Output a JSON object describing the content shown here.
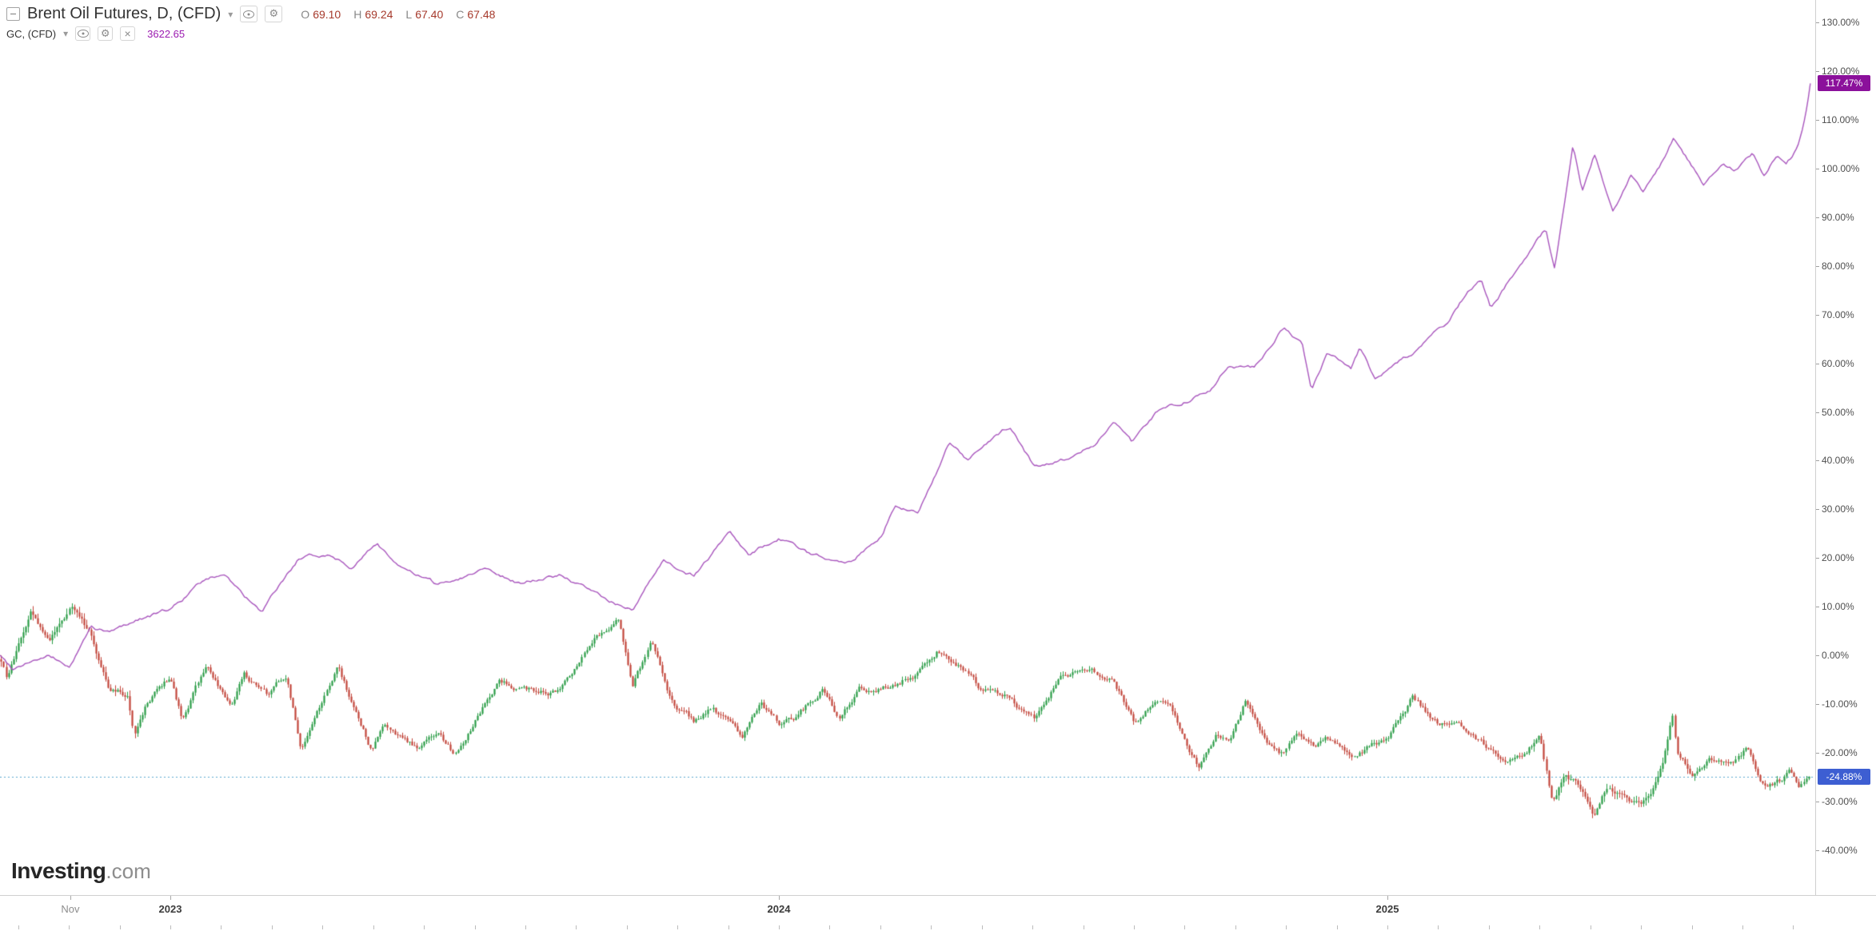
{
  "legend": {
    "main": {
      "title": "Brent Oil Futures, D, (CFD)",
      "ohlc": [
        {
          "label": "O",
          "value": "69.10"
        },
        {
          "label": "H",
          "value": "69.24"
        },
        {
          "label": "L",
          "value": "67.40"
        },
        {
          "label": "C",
          "value": "67.48"
        }
      ]
    },
    "overlay": {
      "title": "GC, (CFD)",
      "value": "3622.65"
    }
  },
  "watermark": {
    "brand": "Investing",
    "suffix": ".com"
  },
  "price_labels": {
    "gold": {
      "text": "117.47%",
      "value": 117.47
    },
    "brent": {
      "text": "-24.88%",
      "value": -24.88
    }
  },
  "colors": {
    "candle_up": "#2a9c46",
    "candle_down": "#c2453a",
    "gold_line": "#a855bd",
    "gold_badge": "#8b109b",
    "gold_value": "#9b1ab0",
    "brent_badge": "#3d5ed2",
    "ohlc_value": "#a63a2c",
    "dashed_line": "#5aa7cf",
    "axis_text": "#4f4f4f"
  },
  "axes": {
    "y_ticks": [
      {
        "label": "130.00%",
        "value": 130
      },
      {
        "label": "120.00%",
        "value": 120
      },
      {
        "label": "110.00%",
        "value": 110
      },
      {
        "label": "100.00%",
        "value": 100
      },
      {
        "label": "90.00%",
        "value": 90
      },
      {
        "label": "80.00%",
        "value": 80
      },
      {
        "label": "70.00%",
        "value": 70
      },
      {
        "label": "60.00%",
        "value": 60
      },
      {
        "label": "50.00%",
        "value": 50
      },
      {
        "label": "40.00%",
        "value": 40
      },
      {
        "label": "30.00%",
        "value": 30
      },
      {
        "label": "20.00%",
        "value": 20
      },
      {
        "label": "10.00%",
        "value": 10
      },
      {
        "label": "0.00%",
        "value": 0
      },
      {
        "label": "-10.00%",
        "value": -10
      },
      {
        "label": "-20.00%",
        "value": -20
      },
      {
        "label": "-30.00%",
        "value": -30
      },
      {
        "label": "-40.00%",
        "value": -40
      }
    ],
    "x_ticks": [
      {
        "label": "Nov",
        "year": 2022.8356,
        "strong": false
      },
      {
        "label": "2023",
        "year": 2023.0,
        "strong": true
      },
      {
        "label": "2024",
        "year": 2024.0,
        "strong": true
      },
      {
        "label": "2025",
        "year": 2025.0,
        "strong": true
      }
    ]
  },
  "chart_data": [
    {
      "type": "candlestick",
      "name": "Brent Oil Futures (CFD), Daily, percent change vs chart start",
      "x_unit": "decimal_year",
      "y_unit": "percent_change",
      "ylim": [
        -40,
        130
      ],
      "xlim": [
        2022.718,
        2025.703
      ],
      "grid": false,
      "last_values": {
        "open": 69.1,
        "high": 69.24,
        "low": 67.4,
        "close": 67.48,
        "close_pct": -24.88
      },
      "series_keypoints": [
        [
          2022.718,
          0.9
        ],
        [
          2022.73,
          -4.2
        ],
        [
          2022.76,
          4.6
        ],
        [
          2022.77,
          9.0
        ],
        [
          2022.8,
          2.4
        ],
        [
          2022.838,
          9.6
        ],
        [
          2022.87,
          4.1
        ],
        [
          2022.9,
          -7.4
        ],
        [
          2022.93,
          -8.1
        ],
        [
          2022.94,
          -15.4
        ],
        [
          2022.96,
          -9.6
        ],
        [
          2023.0,
          -4.4
        ],
        [
          2023.02,
          -13.4
        ],
        [
          2023.06,
          -1.9
        ],
        [
          2023.1,
          -11.0
        ],
        [
          2023.12,
          -3.7
        ],
        [
          2023.16,
          -8.3
        ],
        [
          2023.19,
          -4.1
        ],
        [
          2023.215,
          -19.7
        ],
        [
          2023.24,
          -11.3
        ],
        [
          2023.275,
          -2.9
        ],
        [
          2023.33,
          -19.6
        ],
        [
          2023.35,
          -14.9
        ],
        [
          2023.41,
          -19.1
        ],
        [
          2023.44,
          -15.6
        ],
        [
          2023.465,
          -19.6
        ],
        [
          2023.49,
          -14.9
        ],
        [
          2023.54,
          -4.8
        ],
        [
          2023.58,
          -6.5
        ],
        [
          2023.64,
          -7.5
        ],
        [
          2023.7,
          5.4
        ],
        [
          2023.735,
          7.4
        ],
        [
          2023.76,
          -5.7
        ],
        [
          2023.79,
          2.5
        ],
        [
          2023.83,
          -11.4
        ],
        [
          2023.86,
          -13.7
        ],
        [
          2023.89,
          -10.2
        ],
        [
          2023.94,
          -17.4
        ],
        [
          2023.97,
          -9.9
        ],
        [
          2024.0,
          -14.3
        ],
        [
          2024.03,
          -12.9
        ],
        [
          2024.07,
          -7.0
        ],
        [
          2024.1,
          -13.2
        ],
        [
          2024.13,
          -7.1
        ],
        [
          2024.16,
          -7.0
        ],
        [
          2024.2,
          -5.0
        ],
        [
          2024.23,
          -3.2
        ],
        [
          2024.26,
          1.4
        ],
        [
          2024.3,
          -2.9
        ],
        [
          2024.33,
          -7.2
        ],
        [
          2024.37,
          -7.9
        ],
        [
          2024.42,
          -13.8
        ],
        [
          2024.46,
          -5.2
        ],
        [
          2024.51,
          -2.8
        ],
        [
          2024.55,
          -5.4
        ],
        [
          2024.585,
          -14.4
        ],
        [
          2024.62,
          -8.5
        ],
        [
          2024.65,
          -12.6
        ],
        [
          2024.69,
          -23.0
        ],
        [
          2024.72,
          -16.4
        ],
        [
          2024.74,
          -18.1
        ],
        [
          2024.765,
          -10.0
        ],
        [
          2024.8,
          -18.7
        ],
        [
          2024.83,
          -20.8
        ],
        [
          2024.85,
          -15.9
        ],
        [
          2024.88,
          -18.5
        ],
        [
          2024.9,
          -16.4
        ],
        [
          2024.94,
          -20.9
        ],
        [
          2024.97,
          -18.8
        ],
        [
          2025.0,
          -16.9
        ],
        [
          2025.04,
          -8.8
        ],
        [
          2025.08,
          -13.7
        ],
        [
          2025.12,
          -15.4
        ],
        [
          2025.16,
          -19.3
        ],
        [
          2025.19,
          -22.9
        ],
        [
          2025.22,
          -20.9
        ],
        [
          2025.25,
          -16.6
        ],
        [
          2025.27,
          -30.2
        ],
        [
          2025.29,
          -24.5
        ],
        [
          2025.315,
          -27.0
        ],
        [
          2025.34,
          -33.0
        ],
        [
          2025.36,
          -27.6
        ],
        [
          2025.4,
          -30.1
        ],
        [
          2025.42,
          -29.8
        ],
        [
          2025.44,
          -26.0
        ],
        [
          2025.452,
          -22.4
        ],
        [
          2025.462,
          -17.3
        ],
        [
          2025.468,
          -12.3
        ],
        [
          2025.475,
          -20.5
        ],
        [
          2025.5,
          -24.7
        ],
        [
          2025.53,
          -21.7
        ],
        [
          2025.56,
          -23.2
        ],
        [
          2025.59,
          -19.4
        ],
        [
          2025.62,
          -27.0
        ],
        [
          2025.645,
          -25.7
        ],
        [
          2025.66,
          -24.3
        ],
        [
          2025.678,
          -27.1
        ],
        [
          2025.687,
          -25.4
        ],
        [
          2025.692,
          -24.88
        ]
      ]
    },
    {
      "type": "line",
      "name": "GC Gold Futures (CFD), percent change vs chart start",
      "x_unit": "decimal_year",
      "y_unit": "percent_change",
      "ylim": [
        -40,
        130
      ],
      "xlim": [
        2022.718,
        2025.703
      ],
      "grid": false,
      "last_values": {
        "price": 3622.65,
        "pct": 117.47
      },
      "series_keypoints": [
        [
          2022.718,
          0.3
        ],
        [
          2022.74,
          -2.6
        ],
        [
          2022.77,
          -0.8
        ],
        [
          2022.8,
          -0.2
        ],
        [
          2022.835,
          -2.4
        ],
        [
          2022.87,
          5.8
        ],
        [
          2022.9,
          4.6
        ],
        [
          2022.95,
          7.6
        ],
        [
          2023.0,
          9.5
        ],
        [
          2023.05,
          14.8
        ],
        [
          2023.09,
          16.9
        ],
        [
          2023.12,
          12.5
        ],
        [
          2023.15,
          8.6
        ],
        [
          2023.21,
          19.6
        ],
        [
          2023.26,
          20.8
        ],
        [
          2023.3,
          18.4
        ],
        [
          2023.34,
          23.1
        ],
        [
          2023.38,
          17.8
        ],
        [
          2023.44,
          14.3
        ],
        [
          2023.52,
          18.2
        ],
        [
          2023.58,
          14.8
        ],
        [
          2023.64,
          16.6
        ],
        [
          2023.7,
          12.4
        ],
        [
          2023.76,
          9.3
        ],
        [
          2023.81,
          19.0
        ],
        [
          2023.86,
          16.5
        ],
        [
          2023.92,
          25.3
        ],
        [
          2023.95,
          20.1
        ],
        [
          2024.0,
          24.2
        ],
        [
          2024.05,
          20.6
        ],
        [
          2024.12,
          19.7
        ],
        [
          2024.17,
          24.9
        ],
        [
          2024.19,
          30.8
        ],
        [
          2024.23,
          29.9
        ],
        [
          2024.28,
          43.8
        ],
        [
          2024.31,
          39.8
        ],
        [
          2024.38,
          46.9
        ],
        [
          2024.42,
          38.6
        ],
        [
          2024.47,
          40.4
        ],
        [
          2024.52,
          43.9
        ],
        [
          2024.55,
          48.0
        ],
        [
          2024.58,
          43.6
        ],
        [
          2024.62,
          50.2
        ],
        [
          2024.66,
          51.4
        ],
        [
          2024.71,
          55.1
        ],
        [
          2024.74,
          60.4
        ],
        [
          2024.78,
          59.2
        ],
        [
          2024.83,
          67.5
        ],
        [
          2024.86,
          63.4
        ],
        [
          2024.875,
          54.3
        ],
        [
          2024.9,
          62.1
        ],
        [
          2024.94,
          58.6
        ],
        [
          2024.955,
          63.2
        ],
        [
          2024.98,
          56.4
        ],
        [
          2025.0,
          58.5
        ],
        [
          2025.05,
          62.6
        ],
        [
          2025.1,
          68.2
        ],
        [
          2025.13,
          74.4
        ],
        [
          2025.155,
          76.9
        ],
        [
          2025.17,
          71.6
        ],
        [
          2025.21,
          78.8
        ],
        [
          2025.23,
          82.6
        ],
        [
          2025.26,
          87.5
        ],
        [
          2025.275,
          79.3
        ],
        [
          2025.305,
          105.2
        ],
        [
          2025.32,
          95.6
        ],
        [
          2025.34,
          103.1
        ],
        [
          2025.37,
          91.3
        ],
        [
          2025.4,
          98.6
        ],
        [
          2025.42,
          95.4
        ],
        [
          2025.45,
          101.4
        ],
        [
          2025.47,
          106.1
        ],
        [
          2025.49,
          102.3
        ],
        [
          2025.52,
          96.5
        ],
        [
          2025.55,
          100.8
        ],
        [
          2025.57,
          99.8
        ],
        [
          2025.6,
          103.4
        ],
        [
          2025.62,
          98.7
        ],
        [
          2025.64,
          102.9
        ],
        [
          2025.655,
          100.4
        ],
        [
          2025.665,
          102.1
        ],
        [
          2025.675,
          104.9
        ],
        [
          2025.683,
          108.5
        ],
        [
          2025.69,
          113.0
        ],
        [
          2025.695,
          117.47
        ]
      ]
    }
  ]
}
